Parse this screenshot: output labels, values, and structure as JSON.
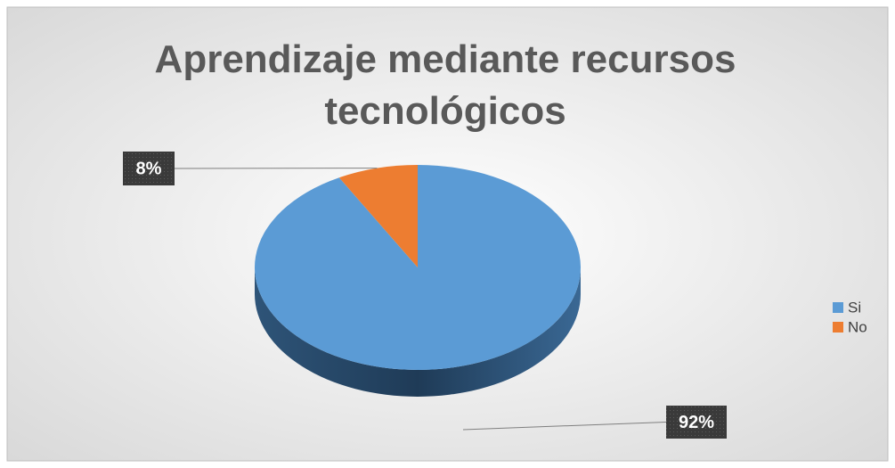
{
  "chart_data": {
    "type": "pie",
    "title": "Aprendizaje mediante recursos tecnológicos",
    "categories": [
      "Si",
      "No"
    ],
    "values": [
      92,
      8
    ],
    "value_labels": [
      "92%",
      "8%"
    ],
    "colors": [
      "#5b9bd5",
      "#ed7d31"
    ],
    "legend": "right"
  }
}
